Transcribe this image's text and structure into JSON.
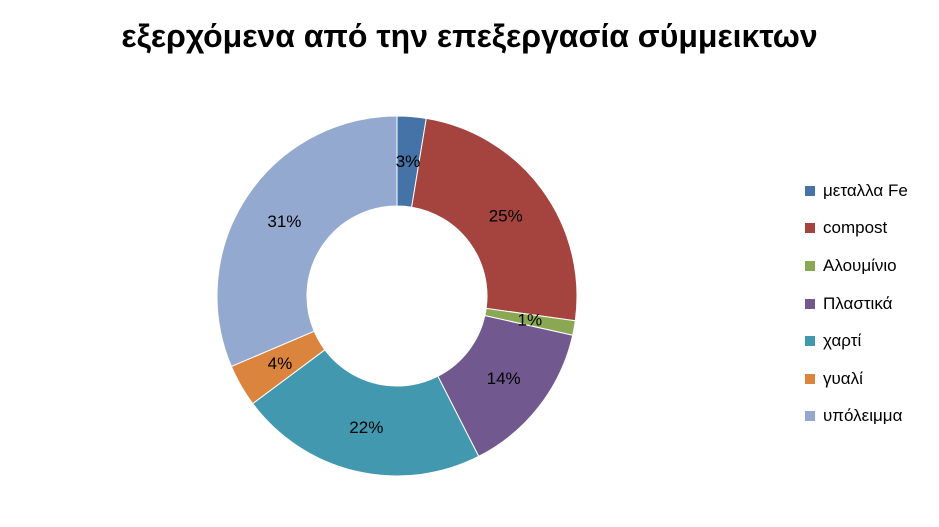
{
  "chart_data": {
    "type": "pie",
    "donut": true,
    "title": "εξερχόμενα από την επεξεργασία σύμμεικτων",
    "legend_position": "right",
    "series": [
      {
        "label": "μεταλλα Fe",
        "value": 2.6,
        "display": "3%",
        "color": "#4572A7"
      },
      {
        "label": "compost",
        "value": 24.6,
        "display": "25%",
        "color": "#A5443F"
      },
      {
        "label": "Αλουμίνιο",
        "value": 1.3,
        "display": "1%",
        "color": "#8AA753"
      },
      {
        "label": "Πλαστικά",
        "value": 14.0,
        "display": "14%",
        "color": "#71588F"
      },
      {
        "label": "χαρτί",
        "value": 22.3,
        "display": "22%",
        "color": "#4198AF"
      },
      {
        "label": "γυαλί",
        "value": 3.8,
        "display": "4%",
        "color": "#DB843D"
      },
      {
        "label": "υπόλειμμα",
        "value": 31.4,
        "display": "31%",
        "color": "#93A9CF"
      }
    ]
  }
}
